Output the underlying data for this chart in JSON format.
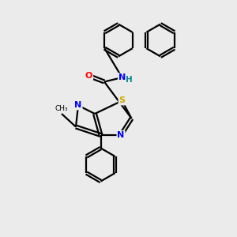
{
  "background_color": "#ebebeb",
  "bond_color": "#000000",
  "atom_colors": {
    "N": "#0000ff",
    "O": "#ff0000",
    "S": "#ccaa00",
    "H": "#008888",
    "C": "#000000"
  },
  "lw": 1.6
}
